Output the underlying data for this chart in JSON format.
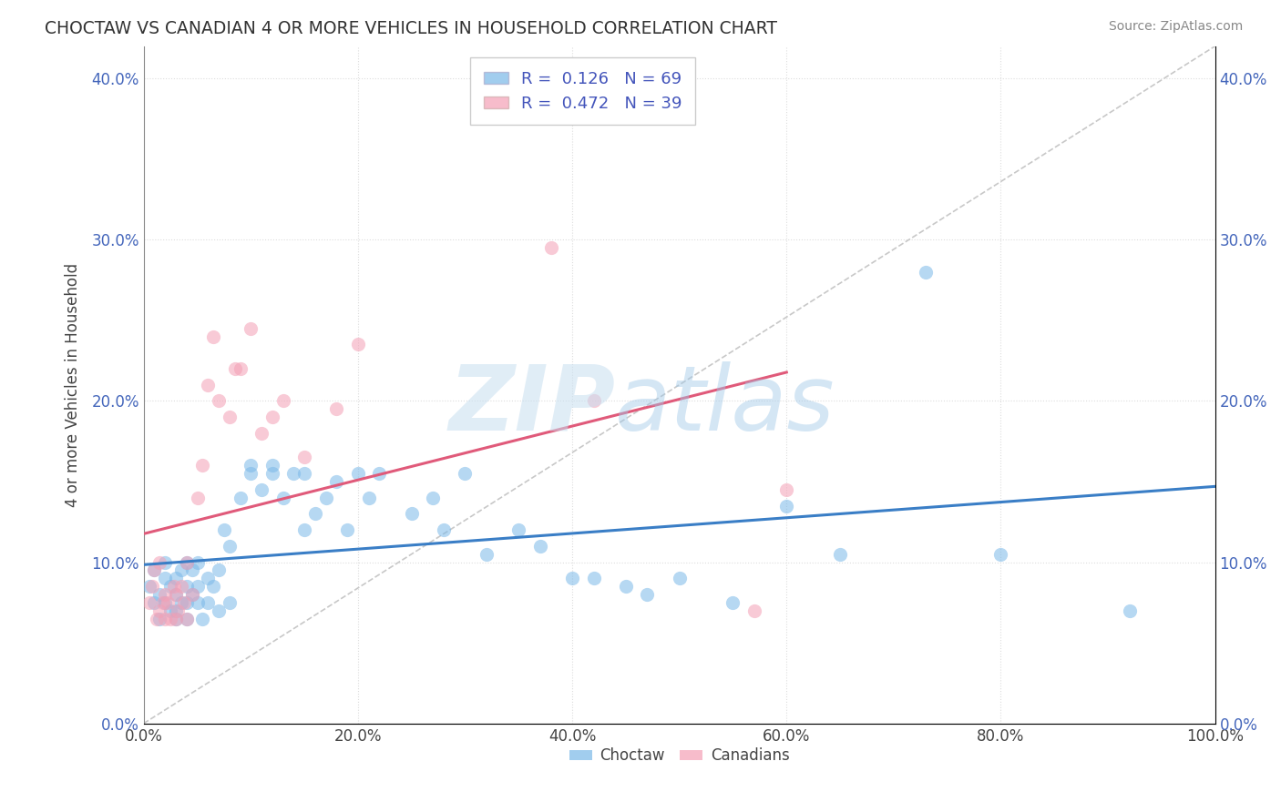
{
  "title": "CHOCTAW VS CANADIAN 4 OR MORE VEHICLES IN HOUSEHOLD CORRELATION CHART",
  "source": "Source: ZipAtlas.com",
  "xlabel": "",
  "ylabel": "4 or more Vehicles in Household",
  "xlim": [
    0.0,
    1.0
  ],
  "ylim": [
    0.0,
    0.42
  ],
  "xticks": [
    0.0,
    0.2,
    0.4,
    0.6,
    0.8,
    1.0
  ],
  "yticks": [
    0.0,
    0.1,
    0.2,
    0.3,
    0.4
  ],
  "xticklabels": [
    "0.0%",
    "20.0%",
    "40.0%",
    "60.0%",
    "80.0%",
    "100.0%"
  ],
  "yticklabels": [
    "0.0%",
    "10.0%",
    "20.0%",
    "30.0%",
    "40.0%"
  ],
  "choctaw_color": "#7ab8e8",
  "canadians_color": "#f4a0b5",
  "choctaw_line_color": "#3a7ec6",
  "canadians_line_color": "#e05a7a",
  "ref_line_color": "#cccccc",
  "r_choctaw": 0.126,
  "n_choctaw": 69,
  "r_canadians": 0.472,
  "n_canadians": 39,
  "watermark_zip": "ZIP",
  "watermark_atlas": "atlas",
  "background_color": "#ffffff",
  "grid_color": "#dddddd",
  "choctaw_x": [
    0.005,
    0.01,
    0.01,
    0.015,
    0.015,
    0.02,
    0.02,
    0.02,
    0.025,
    0.025,
    0.03,
    0.03,
    0.03,
    0.03,
    0.035,
    0.035,
    0.04,
    0.04,
    0.04,
    0.04,
    0.045,
    0.045,
    0.05,
    0.05,
    0.05,
    0.055,
    0.06,
    0.06,
    0.065,
    0.07,
    0.07,
    0.075,
    0.08,
    0.08,
    0.09,
    0.1,
    0.1,
    0.11,
    0.12,
    0.12,
    0.13,
    0.14,
    0.15,
    0.15,
    0.16,
    0.17,
    0.18,
    0.19,
    0.2,
    0.21,
    0.22,
    0.25,
    0.27,
    0.28,
    0.3,
    0.32,
    0.35,
    0.37,
    0.4,
    0.42,
    0.45,
    0.47,
    0.5,
    0.55,
    0.6,
    0.65,
    0.73,
    0.8,
    0.92
  ],
  "choctaw_y": [
    0.085,
    0.095,
    0.075,
    0.065,
    0.08,
    0.1,
    0.075,
    0.09,
    0.07,
    0.085,
    0.065,
    0.08,
    0.09,
    0.07,
    0.095,
    0.075,
    0.085,
    0.1,
    0.075,
    0.065,
    0.08,
    0.095,
    0.085,
    0.075,
    0.1,
    0.065,
    0.075,
    0.09,
    0.085,
    0.07,
    0.095,
    0.12,
    0.11,
    0.075,
    0.14,
    0.155,
    0.16,
    0.145,
    0.16,
    0.155,
    0.14,
    0.155,
    0.12,
    0.155,
    0.13,
    0.14,
    0.15,
    0.12,
    0.155,
    0.14,
    0.155,
    0.13,
    0.14,
    0.12,
    0.155,
    0.105,
    0.12,
    0.11,
    0.09,
    0.09,
    0.085,
    0.08,
    0.09,
    0.075,
    0.135,
    0.105,
    0.28,
    0.105,
    0.07
  ],
  "canadians_x": [
    0.005,
    0.008,
    0.01,
    0.012,
    0.015,
    0.015,
    0.018,
    0.02,
    0.02,
    0.022,
    0.025,
    0.028,
    0.03,
    0.03,
    0.032,
    0.035,
    0.038,
    0.04,
    0.04,
    0.045,
    0.05,
    0.055,
    0.06,
    0.065,
    0.07,
    0.08,
    0.085,
    0.09,
    0.1,
    0.11,
    0.12,
    0.13,
    0.15,
    0.18,
    0.2,
    0.38,
    0.42,
    0.57,
    0.6
  ],
  "canadians_y": [
    0.075,
    0.085,
    0.095,
    0.065,
    0.07,
    0.1,
    0.075,
    0.065,
    0.08,
    0.075,
    0.065,
    0.085,
    0.08,
    0.065,
    0.07,
    0.085,
    0.075,
    0.1,
    0.065,
    0.08,
    0.14,
    0.16,
    0.21,
    0.24,
    0.2,
    0.19,
    0.22,
    0.22,
    0.245,
    0.18,
    0.19,
    0.2,
    0.165,
    0.195,
    0.235,
    0.295,
    0.2,
    0.07,
    0.145
  ]
}
